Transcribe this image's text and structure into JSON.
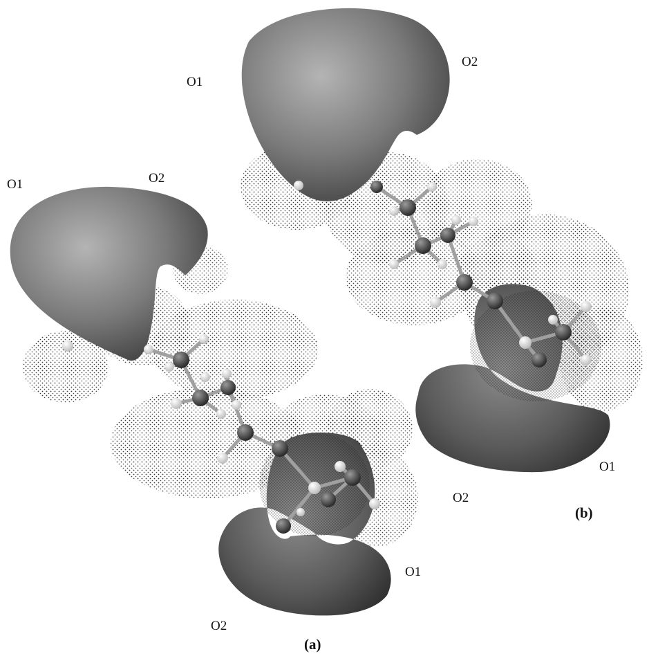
{
  "panels": {
    "a": {
      "caption": "(a)",
      "lobe_labels": {
        "upper_left": "O1",
        "upper_right": "O2",
        "lower_right": "O1",
        "lower_left": "O2"
      }
    },
    "b": {
      "caption": "(b)",
      "lobe_labels": {
        "upper_left": "O1",
        "upper_right": "O2",
        "lower_right": "O1",
        "lower_left": "O2"
      }
    }
  },
  "colors": {
    "lobe_light": "#a8a8a8",
    "lobe_mid": "#6e6e6e",
    "lobe_dark": "#3a3a3a",
    "dot": "#1a1a1a",
    "atom_heavy": "#4a4a4a",
    "atom_hydrogen": "#e6e6e6",
    "bond": "#9a9a9a"
  }
}
